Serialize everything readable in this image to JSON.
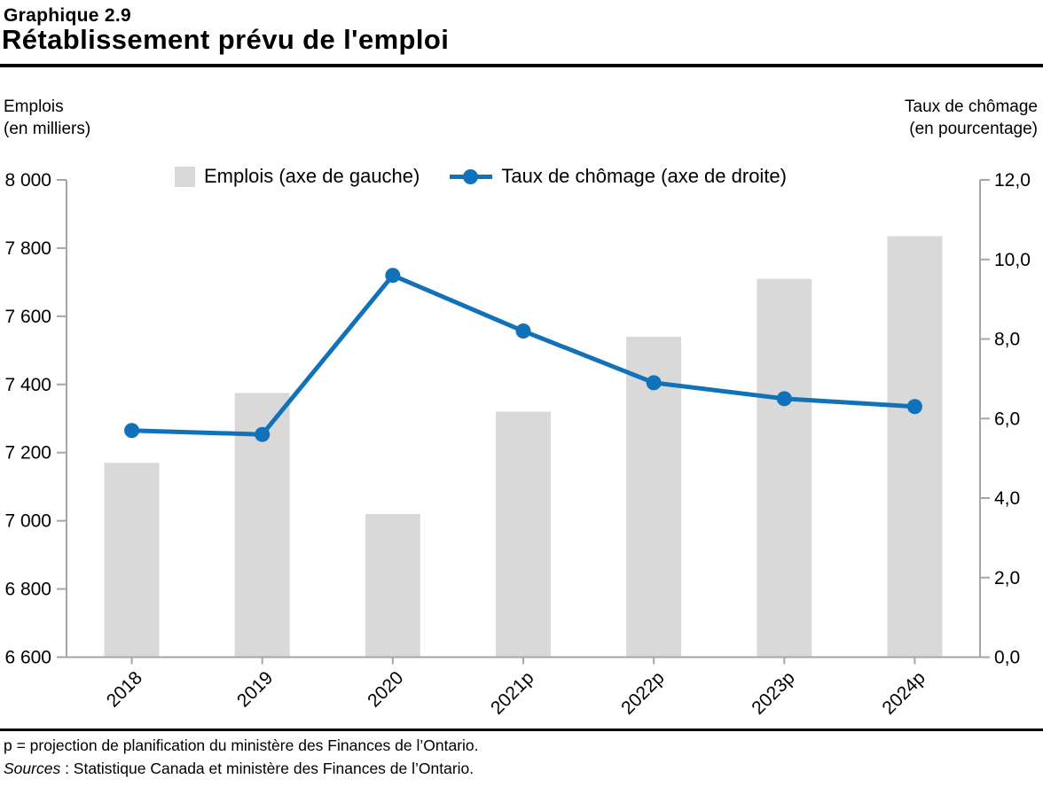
{
  "header": {
    "kicker": "Graphique 2.9",
    "title": "Rétablissement prévu de l'emploi"
  },
  "axes": {
    "left_unit_line1": "Emplois",
    "left_unit_line2": "(en milliers)",
    "right_unit_line1": "Taux de chômage",
    "right_unit_line2": "(en pourcentage)"
  },
  "legend": {
    "items": [
      {
        "label": "Emplois (axe de gauche)",
        "swatch": "gray-square"
      },
      {
        "label": "Taux de chômage (axe de droite)",
        "swatch": "blue-line-dot"
      }
    ]
  },
  "chart_data": {
    "type": "bar",
    "subtype": "bar+line dual axis",
    "title": "Rétablissement prévu de l'emploi",
    "categories": [
      "2018",
      "2019",
      "2020",
      "2021p",
      "2022p",
      "2023p",
      "2024p"
    ],
    "series": [
      {
        "name": "Emplois (axe de gauche)",
        "type": "bar",
        "axis": "left",
        "color": "#d9d9d9",
        "values": [
          7170,
          7375,
          7020,
          7320,
          7540,
          7710,
          7835
        ]
      },
      {
        "name": "Taux de chômage (axe de droite)",
        "type": "line",
        "axis": "right",
        "color": "#1172ba",
        "values": [
          5.7,
          5.6,
          9.6,
          8.2,
          6.9,
          6.5,
          6.3
        ]
      }
    ],
    "left_axis": {
      "label": "Emplois (en milliers)",
      "min": 6600,
      "max": 8000,
      "tick_step": 200,
      "tick_values": [
        6600,
        6800,
        7000,
        7200,
        7400,
        7600,
        7800,
        8000
      ],
      "tick_labels": [
        "6 600",
        "6 800",
        "7 000",
        "7 200",
        "7 400",
        "7 600",
        "7 800",
        "8 000"
      ]
    },
    "right_axis": {
      "label": "Taux de chômage (en pourcentage)",
      "min": 0,
      "max": 12,
      "tick_step": 2,
      "tick_values": [
        0,
        2,
        4,
        6,
        8,
        10,
        12
      ],
      "tick_labels": [
        "0,0",
        "2,0",
        "4,0",
        "6,0",
        "8,0",
        "10,0",
        "12,0"
      ]
    },
    "grid": false,
    "legend_position": "top"
  },
  "footer": {
    "note": "p = projection de planification du ministère des Finances de l’Ontario.",
    "sources_label": "Sources",
    "sources_rest": " : Statistique Canada et ministère des Finances de l’Ontario."
  },
  "colors": {
    "bar": "#d9d9d9",
    "line": "#1172ba",
    "axis": "#a6a6a6",
    "text": "#000000"
  }
}
